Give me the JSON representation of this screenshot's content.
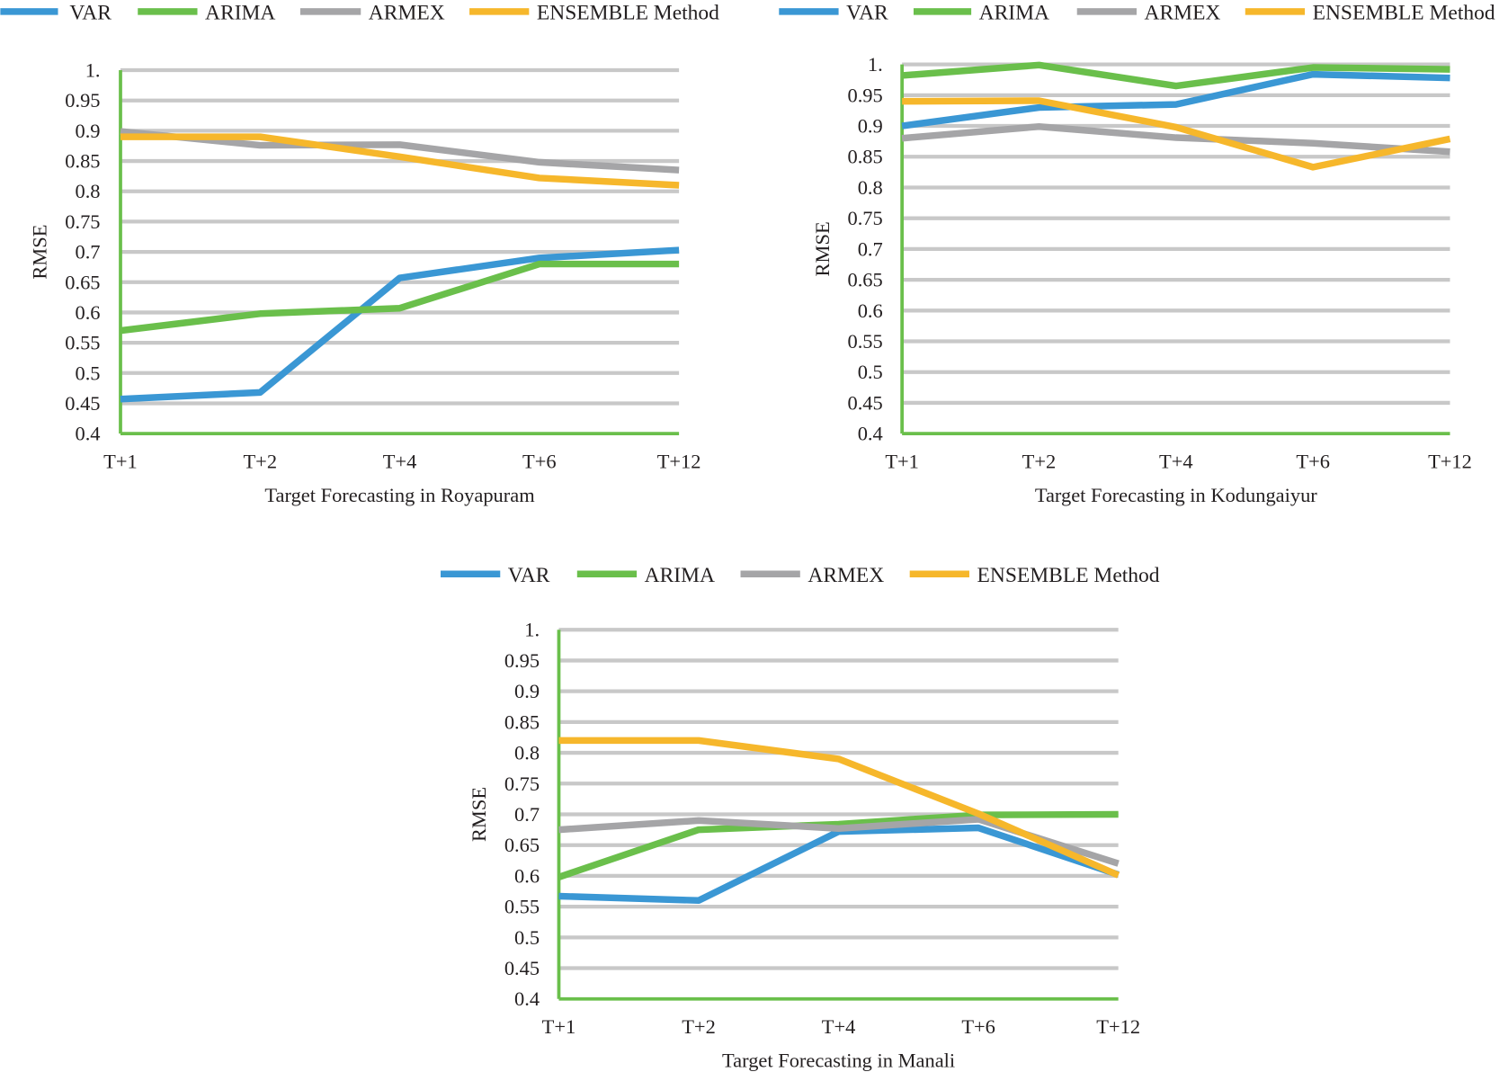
{
  "colors": {
    "VAR": "#3a97d4",
    "ARIMA": "#6abf4b",
    "ARMEX": "#a5a5a7",
    "ENSEMBLE Method": "#f6b72b",
    "grid": "#c8c8c8",
    "axis": "#6abf4b"
  },
  "chart_data": [
    {
      "type": "line",
      "xlabel": "Target Forecasting in Royapuram",
      "ylabel": "RMSE",
      "categories": [
        "T+1",
        "T+2",
        "T+4",
        "T+6",
        "T+12"
      ],
      "ylim": [
        0.4,
        1.0
      ],
      "yticks": [
        "0.4",
        "0.45",
        "0.5",
        "0.55",
        "0.6",
        "0.65",
        "0.7",
        "0.75",
        "0.8",
        "0.85",
        "0.9",
        "0.95",
        "1."
      ],
      "grid": true,
      "legend": "top",
      "series": [
        {
          "name": "VAR",
          "values": [
            0.457,
            0.468,
            0.657,
            0.69,
            0.703
          ]
        },
        {
          "name": "ARIMA",
          "values": [
            0.57,
            0.598,
            0.607,
            0.68,
            0.68
          ]
        },
        {
          "name": "ARMEX",
          "values": [
            0.899,
            0.876,
            0.877,
            0.848,
            0.835
          ]
        },
        {
          "name": "ENSEMBLE Method",
          "values": [
            0.89,
            0.89,
            0.857,
            0.822,
            0.81
          ]
        }
      ]
    },
    {
      "type": "line",
      "xlabel": "Target Forecasting in Kodungaiyur",
      "ylabel": "RMSE",
      "categories": [
        "T+1",
        "T+2",
        "T+4",
        "T+6",
        "T+12"
      ],
      "ylim": [
        0.4,
        1.0
      ],
      "yticks": [
        "0.4",
        "0.45",
        "0.5",
        "0.55",
        "0.6",
        "0.65",
        "0.7",
        "0.75",
        "0.8",
        "0.85",
        "0.9",
        "0.95",
        "1."
      ],
      "grid": true,
      "legend": "top",
      "series": [
        {
          "name": "VAR",
          "values": [
            0.9,
            0.93,
            0.935,
            0.984,
            0.978
          ]
        },
        {
          "name": "ARIMA",
          "values": [
            0.982,
            0.999,
            0.965,
            0.995,
            0.992
          ]
        },
        {
          "name": "ARMEX",
          "values": [
            0.88,
            0.899,
            0.881,
            0.872,
            0.858
          ]
        },
        {
          "name": "ENSEMBLE Method",
          "values": [
            0.94,
            0.941,
            0.898,
            0.833,
            0.879
          ]
        }
      ]
    },
    {
      "type": "line",
      "xlabel": "Target Forecasting in Manali",
      "ylabel": "RMSE",
      "categories": [
        "T+1",
        "T+2",
        "T+4",
        "T+6",
        "T+12"
      ],
      "ylim": [
        0.4,
        1.0
      ],
      "yticks": [
        "0.4",
        "0.45",
        "0.5",
        "0.55",
        "0.6",
        "0.65",
        "0.7",
        "0.75",
        "0.8",
        "0.85",
        "0.9",
        "0.95",
        "1."
      ],
      "grid": true,
      "legend": "top",
      "series": [
        {
          "name": "VAR",
          "values": [
            0.567,
            0.56,
            0.672,
            0.678,
            0.602
          ]
        },
        {
          "name": "ARIMA",
          "values": [
            0.598,
            0.675,
            0.684,
            0.699,
            0.7
          ]
        },
        {
          "name": "ARMEX",
          "values": [
            0.675,
            0.69,
            0.677,
            0.692,
            0.62
          ]
        },
        {
          "name": "ENSEMBLE Method",
          "values": [
            0.82,
            0.82,
            0.79,
            0.701,
            0.601
          ]
        }
      ]
    }
  ]
}
